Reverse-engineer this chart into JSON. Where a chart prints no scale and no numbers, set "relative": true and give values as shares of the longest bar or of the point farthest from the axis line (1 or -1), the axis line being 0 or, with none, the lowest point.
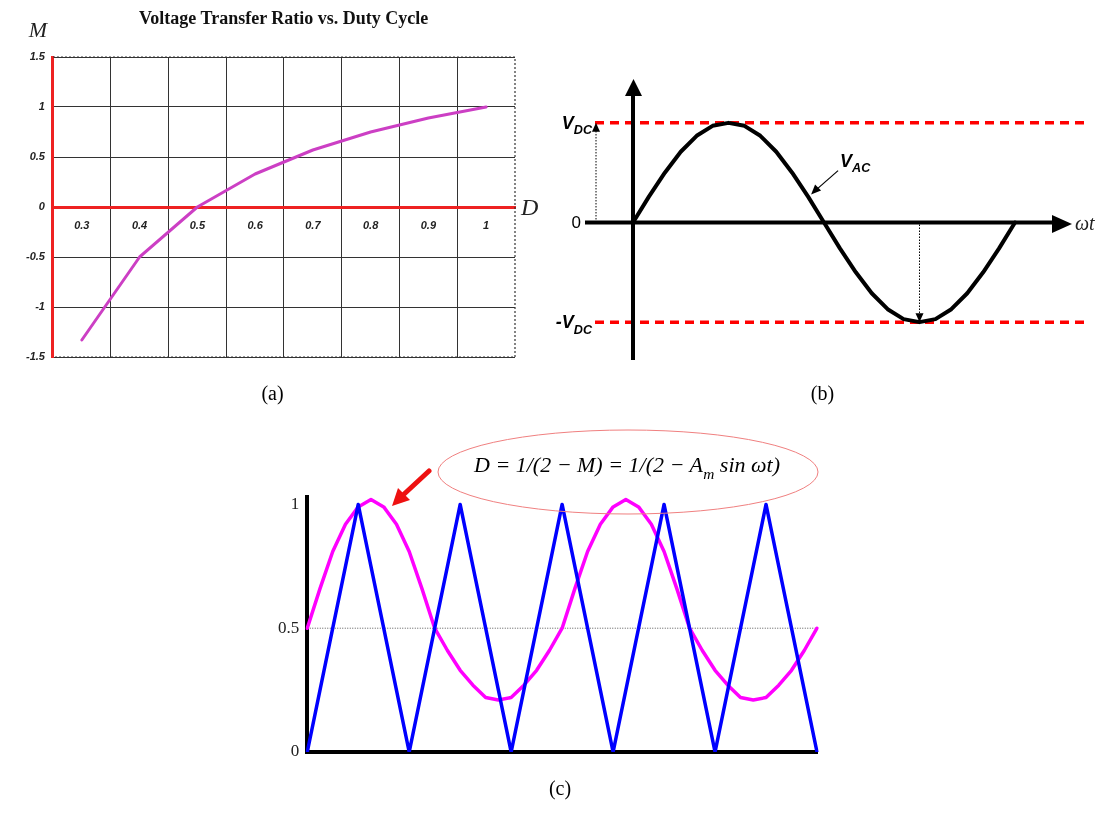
{
  "chart_data": [
    {
      "type": "line",
      "title": "Voltage Transfer Ratio vs. Duty Cycle",
      "xlabel": "D",
      "ylabel": "M",
      "x": [
        0.3,
        0.4,
        0.5,
        0.6,
        0.7,
        0.8,
        0.9,
        1
      ],
      "series": [
        {
          "color": "#cc3fc4",
          "values": [
            -1.33,
            -0.5,
            0,
            0.33,
            0.57,
            0.75,
            0.89,
            1
          ]
        }
      ],
      "xlim": [
        0.25,
        1.05
      ],
      "xticks": [
        0.3,
        {
          "value": 0.35,
          "label": null
        },
        0.4,
        {
          "value": 0.45,
          "label": null
        },
        0.5,
        {
          "value": 0.55,
          "label": null
        },
        0.6,
        {
          "value": 0.65,
          "label": null
        },
        0.7,
        {
          "value": 0.75,
          "label": null
        },
        0.8,
        {
          "value": 0.85,
          "label": null
        },
        0.9,
        {
          "value": 0.95,
          "label": null
        },
        1
      ],
      "ylim": [
        -1.5,
        1.5
      ],
      "yticks": [
        -1.5,
        -1,
        -0.5,
        0,
        0.5,
        1,
        1.5
      ],
      "grid": true,
      "marker": "none",
      "line_style": "solid",
      "annotations": [
        "(a)"
      ]
    },
    {
      "type": "line",
      "relative": true,
      "xlabel": "ωt",
      "categories": [
        null,
        null,
        null,
        null,
        null,
        null,
        null,
        null,
        null,
        null,
        null,
        null,
        null,
        null,
        null,
        null,
        null,
        null,
        null,
        null,
        null,
        null,
        null,
        null,
        null
      ],
      "series": [
        {
          "name": "V$_{AC}$",
          "color": "#000000",
          "values": [
            0,
            0.26,
            0.5,
            0.71,
            0.87,
            0.97,
            1,
            0.97,
            0.87,
            0.71,
            0.5,
            0.26,
            0,
            -0.26,
            -0.5,
            -0.71,
            -0.87,
            -0.97,
            -1,
            -0.97,
            -0.87,
            -0.71,
            -0.5,
            -0.26,
            0
          ]
        }
      ],
      "ref_lines": [
        {
          "axis": "y",
          "value": 1,
          "label": "V$_{DC}$",
          "color": "#ff0000",
          "line_style": "dashed"
        },
        {
          "axis": "y",
          "value": -1,
          "label": "-V$_{DC}$",
          "color": "#ff0000",
          "line_style": "dashed"
        }
      ],
      "marker": "none",
      "line_style": "solid",
      "annotations": [
        "0",
        "(b)"
      ]
    },
    {
      "type": "line",
      "tick_labels": "y",
      "categories": [
        null,
        null,
        null,
        null,
        null,
        null,
        null,
        null,
        null,
        null,
        null,
        null,
        null,
        null,
        null,
        null,
        null,
        null,
        null,
        null,
        null,
        null,
        null,
        null,
        null,
        null,
        null,
        null,
        null,
        null,
        null,
        null,
        null,
        null,
        null,
        null,
        null,
        null,
        null,
        null,
        null
      ],
      "series": [
        {
          "color": "#0000ff",
          "values": [
            0,
            0.25,
            0.5,
            0.75,
            1,
            0.75,
            0.5,
            0.25,
            0,
            0.25,
            0.5,
            0.75,
            1,
            0.75,
            0.5,
            0.25,
            0,
            0.25,
            0.5,
            0.75,
            1,
            0.75,
            0.5,
            0.25,
            0,
            0.25,
            0.5,
            0.75,
            1,
            0.75,
            0.5,
            0.25,
            0,
            0.25,
            0.5,
            0.75,
            1,
            0.75,
            0.5,
            0.25,
            0
          ]
        },
        {
          "color": "#ff00ff",
          "values": [
            0.5,
            0.66,
            0.81,
            0.92,
            0.99,
            1.02,
            0.99,
            0.92,
            0.81,
            0.66,
            0.5,
            0.41,
            0.33,
            0.27,
            0.22,
            0.21,
            0.22,
            0.27,
            0.33,
            0.41,
            0.5,
            0.66,
            0.81,
            0.92,
            0.99,
            1.02,
            0.99,
            0.92,
            0.81,
            0.66,
            0.5,
            0.41,
            0.33,
            0.27,
            0.22,
            0.21,
            0.22,
            0.27,
            0.33,
            0.41,
            0.5
          ]
        }
      ],
      "ylim": [
        0,
        1.03
      ],
      "yticks": [
        0,
        0.5,
        1
      ],
      "ref_lines": [
        {
          "axis": "y",
          "value": 0.5,
          "color": "#555555",
          "line_style": "dotted"
        }
      ],
      "marker": "none",
      "line_style": "solid",
      "annotations": [
        "D = 1/(2 − M) = 1/(2 − A$_{m}$ sin ωt)",
        "(c)"
      ]
    }
  ]
}
